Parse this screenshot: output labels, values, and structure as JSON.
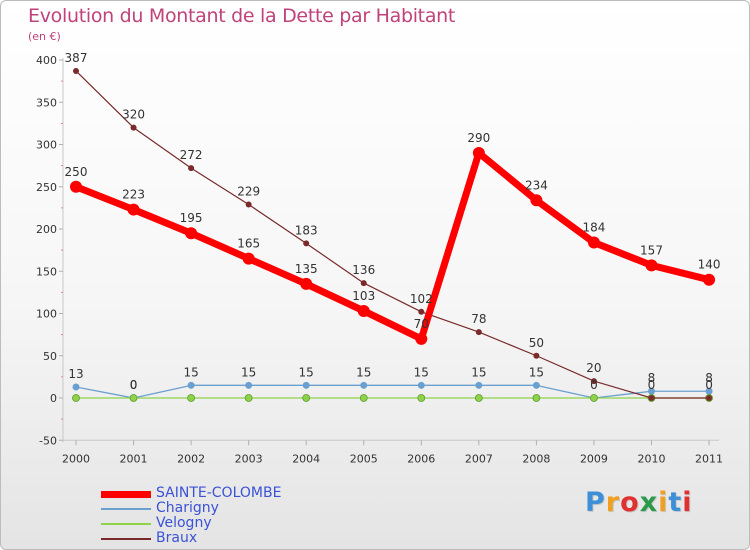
{
  "chart_data": {
    "type": "line",
    "title": "Evolution du Montant de la Dette par Habitant",
    "subtitle": "(en €)",
    "xlabel": "",
    "ylabel": "",
    "x": [
      "2000",
      "2001",
      "2002",
      "2003",
      "2004",
      "2005",
      "2006",
      "2007",
      "2008",
      "2009",
      "2010",
      "2011"
    ],
    "ylim": [
      -50,
      400
    ],
    "yticks": [
      -50,
      0,
      50,
      100,
      150,
      200,
      250,
      300,
      350,
      400
    ],
    "grid": false,
    "legend_position": "bottom-left",
    "series": [
      {
        "name": "SAINTE-COLOMBE",
        "color": "#ff0000",
        "values": [
          250,
          223,
          195,
          165,
          135,
          103,
          70,
          290,
          234,
          184,
          157,
          140
        ],
        "labels": [
          "250",
          "223",
          "195",
          "165",
          "135",
          "103",
          "70",
          "290",
          "234",
          "184",
          "157",
          "140"
        ]
      },
      {
        "name": "Charigny",
        "color": "#6aa0d0",
        "values": [
          13,
          0,
          15,
          15,
          15,
          15,
          15,
          15,
          15,
          0,
          8,
          8
        ],
        "labels": [
          "13",
          "0",
          "15",
          "15",
          "15",
          "15",
          "15",
          "15",
          "15",
          "0",
          "8",
          "8"
        ]
      },
      {
        "name": "Velogny",
        "color": "#8ed24a",
        "values": [
          0,
          0,
          0,
          0,
          0,
          0,
          0,
          0,
          0,
          0,
          0,
          0
        ],
        "labels": [
          "",
          "0",
          "",
          "",
          "",
          "",
          "",
          "",
          "",
          "",
          "0",
          "0"
        ]
      },
      {
        "name": "Braux",
        "color": "#7a2a2a",
        "values": [
          387,
          320,
          272,
          229,
          183,
          136,
          102,
          78,
          50,
          20,
          0,
          0
        ],
        "labels": [
          "387",
          "320",
          "272",
          "229",
          "183",
          "136",
          "102",
          "78",
          "50",
          "20",
          "",
          ""
        ]
      }
    ]
  },
  "brand": {
    "letters": [
      {
        "ch": "P",
        "color": "#3d8fd8"
      },
      {
        "ch": "r",
        "color": "#f0a020"
      },
      {
        "ch": "o",
        "color": "#e03030"
      },
      {
        "ch": "x",
        "color": "#2b9a4b"
      },
      {
        "ch": "i",
        "color": "#f0a020"
      },
      {
        "ch": "t",
        "color": "#3d8fd8"
      },
      {
        "ch": "i",
        "color": "#e03030"
      }
    ]
  }
}
